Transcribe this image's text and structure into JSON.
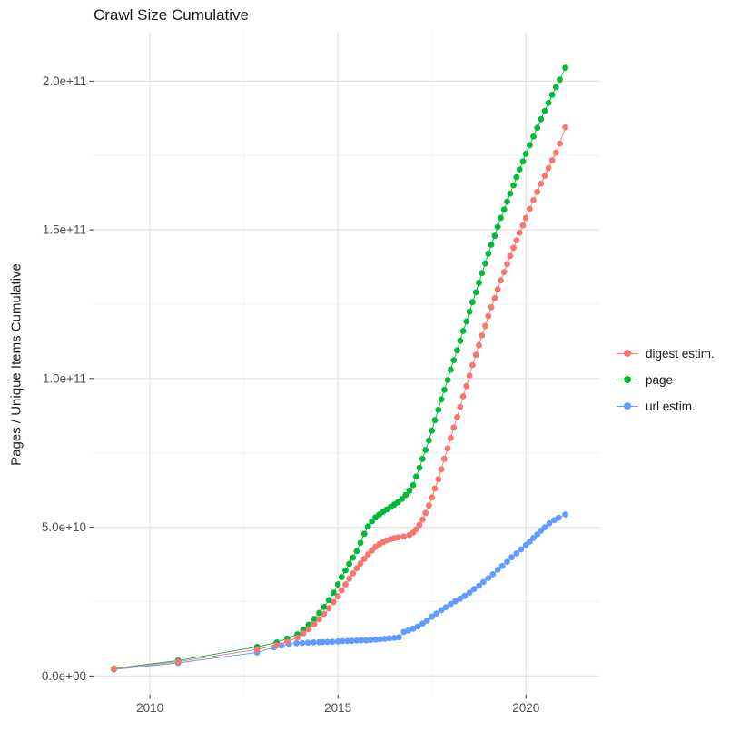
{
  "title": "Crawl Size Cumulative",
  "chart_data": {
    "type": "scatter",
    "title": "Crawl Size Cumulative",
    "xlabel": "",
    "ylabel": "Pages / Unique Items Cumulative",
    "y_unit": "pages, billions (1e9)",
    "xlim": [
      2008.5,
      2021.95
    ],
    "ylim": [
      -6.3,
      216.6
    ],
    "grid": "on",
    "legend_position": "right",
    "x_ticks": [
      {
        "v": 2010,
        "label": "2010"
      },
      {
        "v": 2015,
        "label": "2015"
      },
      {
        "v": 2020,
        "label": "2020"
      }
    ],
    "x_minor": [
      2012.5,
      2017.5
    ],
    "y_ticks": [
      {
        "v": 0,
        "label": "0.0e+00"
      },
      {
        "v": 50,
        "label": "5.0e+10"
      },
      {
        "v": 100,
        "label": "1.0e+11"
      },
      {
        "v": 150,
        "label": "1.5e+11"
      },
      {
        "v": 200,
        "label": "2.0e+11"
      }
    ],
    "y_minor": [
      25,
      75,
      125,
      175
    ],
    "series": [
      {
        "name": "digest estim.",
        "color": "#F8766D",
        "points": [
          [
            2009.04,
            2.4
          ],
          [
            2010.75,
            4.8
          ],
          [
            2012.85,
            8.9
          ],
          [
            2013.37,
            10.3
          ],
          [
            2013.65,
            11.5
          ],
          [
            2013.92,
            12.9
          ],
          [
            2014.08,
            14.3
          ],
          [
            2014.22,
            15.7
          ],
          [
            2014.37,
            17.4
          ],
          [
            2014.5,
            19.1
          ],
          [
            2014.63,
            20.9
          ],
          [
            2014.76,
            22.8
          ],
          [
            2014.88,
            24.8
          ],
          [
            2015.0,
            26.8
          ],
          [
            2015.1,
            28.8
          ],
          [
            2015.2,
            30.8
          ],
          [
            2015.3,
            32.7
          ],
          [
            2015.4,
            34.5
          ],
          [
            2015.5,
            36.2
          ],
          [
            2015.6,
            37.8
          ],
          [
            2015.7,
            39.4
          ],
          [
            2015.8,
            40.9
          ],
          [
            2015.9,
            42.2
          ],
          [
            2016.0,
            43.4
          ],
          [
            2016.1,
            44.3
          ],
          [
            2016.2,
            45.0
          ],
          [
            2016.3,
            45.6
          ],
          [
            2016.4,
            46.0
          ],
          [
            2016.5,
            46.3
          ],
          [
            2016.6,
            46.6
          ],
          [
            2016.75,
            46.9
          ],
          [
            2016.9,
            47.4
          ],
          [
            2017.0,
            48.2
          ],
          [
            2017.08,
            49.3
          ],
          [
            2017.17,
            50.8
          ],
          [
            2017.25,
            52.6
          ],
          [
            2017.33,
            54.8
          ],
          [
            2017.42,
            57.3
          ],
          [
            2017.5,
            60.0
          ],
          [
            2017.58,
            63.0
          ],
          [
            2017.67,
            66.2
          ],
          [
            2017.75,
            69.5
          ],
          [
            2017.83,
            73.0
          ],
          [
            2017.92,
            76.5
          ],
          [
            2018.0,
            80.0
          ],
          [
            2018.08,
            83.5
          ],
          [
            2018.17,
            87.0
          ],
          [
            2018.25,
            90.5
          ],
          [
            2018.33,
            94.0
          ],
          [
            2018.42,
            97.5
          ],
          [
            2018.5,
            101.0
          ],
          [
            2018.58,
            104.5
          ],
          [
            2018.67,
            108.0
          ],
          [
            2018.75,
            111.2
          ],
          [
            2018.83,
            114.5
          ],
          [
            2018.92,
            117.7
          ],
          [
            2019.0,
            121.0
          ],
          [
            2019.08,
            124.0
          ],
          [
            2019.17,
            127.0
          ],
          [
            2019.25,
            130.0
          ],
          [
            2019.33,
            133.0
          ],
          [
            2019.42,
            135.8
          ],
          [
            2019.5,
            138.5
          ],
          [
            2019.58,
            141.2
          ],
          [
            2019.67,
            144.0
          ],
          [
            2019.75,
            146.5
          ],
          [
            2019.83,
            149.0
          ],
          [
            2019.92,
            151.5
          ],
          [
            2020.0,
            154.0
          ],
          [
            2020.1,
            157.0
          ],
          [
            2020.2,
            160.0
          ],
          [
            2020.3,
            162.8
          ],
          [
            2020.4,
            165.5
          ],
          [
            2020.5,
            168.2
          ],
          [
            2020.6,
            170.8
          ],
          [
            2020.7,
            173.4
          ],
          [
            2020.8,
            176.0
          ],
          [
            2020.9,
            179.0
          ],
          [
            2021.05,
            184.5
          ]
        ]
      },
      {
        "name": "page",
        "color": "#00BA38",
        "points": [
          [
            2009.04,
            2.5
          ],
          [
            2010.75,
            5.2
          ],
          [
            2012.85,
            9.8
          ],
          [
            2013.37,
            11.3
          ],
          [
            2013.65,
            12.6
          ],
          [
            2013.92,
            14.0
          ],
          [
            2014.08,
            15.6
          ],
          [
            2014.22,
            17.2
          ],
          [
            2014.37,
            19.2
          ],
          [
            2014.5,
            21.2
          ],
          [
            2014.63,
            23.2
          ],
          [
            2014.76,
            25.5
          ],
          [
            2014.88,
            28.0
          ],
          [
            2015.0,
            30.8
          ],
          [
            2015.1,
            33.2
          ],
          [
            2015.2,
            35.5
          ],
          [
            2015.3,
            37.7
          ],
          [
            2015.4,
            39.8
          ],
          [
            2015.5,
            42.0
          ],
          [
            2015.6,
            44.8
          ],
          [
            2015.7,
            47.8
          ],
          [
            2015.8,
            50.3
          ],
          [
            2015.9,
            52.0
          ],
          [
            2016.0,
            53.3
          ],
          [
            2016.1,
            54.3
          ],
          [
            2016.2,
            55.2
          ],
          [
            2016.3,
            56.0
          ],
          [
            2016.4,
            56.8
          ],
          [
            2016.5,
            57.6
          ],
          [
            2016.6,
            58.5
          ],
          [
            2016.7,
            59.5
          ],
          [
            2016.8,
            60.8
          ],
          [
            2016.9,
            62.3
          ],
          [
            2017.0,
            64.2
          ],
          [
            2017.08,
            67.0
          ],
          [
            2017.17,
            70.0
          ],
          [
            2017.25,
            73.0
          ],
          [
            2017.33,
            76.0
          ],
          [
            2017.42,
            79.2
          ],
          [
            2017.5,
            82.5
          ],
          [
            2017.58,
            86.0
          ],
          [
            2017.67,
            89.5
          ],
          [
            2017.75,
            93.0
          ],
          [
            2017.83,
            96.2
          ],
          [
            2017.92,
            99.5
          ],
          [
            2018.0,
            103.0
          ],
          [
            2018.08,
            106.2
          ],
          [
            2018.17,
            109.5
          ],
          [
            2018.25,
            112.7
          ],
          [
            2018.33,
            116.0
          ],
          [
            2018.42,
            119.2
          ],
          [
            2018.5,
            122.5
          ],
          [
            2018.58,
            125.7
          ],
          [
            2018.67,
            129.0
          ],
          [
            2018.75,
            132.2
          ],
          [
            2018.83,
            135.5
          ],
          [
            2018.92,
            138.7
          ],
          [
            2019.0,
            142.0
          ],
          [
            2019.08,
            145.0
          ],
          [
            2019.17,
            148.0
          ],
          [
            2019.25,
            151.0
          ],
          [
            2019.33,
            154.0
          ],
          [
            2019.42,
            156.8
          ],
          [
            2019.5,
            159.5
          ],
          [
            2019.58,
            162.2
          ],
          [
            2019.67,
            165.0
          ],
          [
            2019.75,
            167.7
          ],
          [
            2019.83,
            170.3
          ],
          [
            2019.92,
            173.0
          ],
          [
            2020.0,
            175.6
          ],
          [
            2020.1,
            178.5
          ],
          [
            2020.2,
            181.4
          ],
          [
            2020.3,
            184.3
          ],
          [
            2020.4,
            187.2
          ],
          [
            2020.5,
            190.0
          ],
          [
            2020.6,
            192.7
          ],
          [
            2020.7,
            195.4
          ],
          [
            2020.8,
            198.0
          ],
          [
            2020.9,
            200.5
          ],
          [
            2021.05,
            204.5
          ]
        ]
      },
      {
        "name": "url estim.",
        "color": "#619CFF",
        "points": [
          [
            2009.04,
            2.2
          ],
          [
            2010.75,
            4.4
          ],
          [
            2012.85,
            7.9
          ],
          [
            2013.3,
            9.6
          ],
          [
            2013.5,
            10.2
          ],
          [
            2013.7,
            10.7
          ],
          [
            2013.9,
            11.0
          ],
          [
            2014.05,
            11.1
          ],
          [
            2014.2,
            11.2
          ],
          [
            2014.35,
            11.3
          ],
          [
            2014.5,
            11.35
          ],
          [
            2014.6,
            11.4
          ],
          [
            2014.72,
            11.45
          ],
          [
            2014.85,
            11.5
          ],
          [
            2015.0,
            11.6
          ],
          [
            2015.12,
            11.7
          ],
          [
            2015.25,
            11.75
          ],
          [
            2015.37,
            11.8
          ],
          [
            2015.5,
            11.9
          ],
          [
            2015.62,
            11.95
          ],
          [
            2015.75,
            12.0
          ],
          [
            2015.87,
            12.1
          ],
          [
            2016.0,
            12.2
          ],
          [
            2016.12,
            12.35
          ],
          [
            2016.25,
            12.5
          ],
          [
            2016.37,
            12.65
          ],
          [
            2016.5,
            12.8
          ],
          [
            2016.62,
            13.0
          ],
          [
            2016.75,
            14.8
          ],
          [
            2016.87,
            15.3
          ],
          [
            2017.0,
            15.9
          ],
          [
            2017.12,
            16.6
          ],
          [
            2017.25,
            17.6
          ],
          [
            2017.37,
            18.6
          ],
          [
            2017.5,
            19.9
          ],
          [
            2017.62,
            21.0
          ],
          [
            2017.75,
            22.1
          ],
          [
            2017.87,
            23.1
          ],
          [
            2018.0,
            24.2
          ],
          [
            2018.12,
            25.1
          ],
          [
            2018.25,
            26.0
          ],
          [
            2018.37,
            26.9
          ],
          [
            2018.5,
            28.0
          ],
          [
            2018.62,
            29.2
          ],
          [
            2018.75,
            30.3
          ],
          [
            2018.87,
            31.6
          ],
          [
            2019.0,
            32.9
          ],
          [
            2019.12,
            34.2
          ],
          [
            2019.25,
            35.7
          ],
          [
            2019.37,
            37.0
          ],
          [
            2019.5,
            38.4
          ],
          [
            2019.62,
            39.9
          ],
          [
            2019.75,
            41.2
          ],
          [
            2019.87,
            42.6
          ],
          [
            2020.0,
            44.0
          ],
          [
            2020.1,
            45.2
          ],
          [
            2020.2,
            46.4
          ],
          [
            2020.3,
            47.6
          ],
          [
            2020.4,
            48.8
          ],
          [
            2020.5,
            50.0
          ],
          [
            2020.62,
            51.3
          ],
          [
            2020.75,
            52.4
          ],
          [
            2020.87,
            53.2
          ],
          [
            2021.05,
            54.3
          ]
        ]
      }
    ]
  },
  "style": {
    "major_grid_color": "#e3e3e3",
    "minor_grid_color": "#f2f2f2",
    "axis_text_color": "#4d4d4d",
    "tick_color": "#333333",
    "point_radius": 3.4
  }
}
